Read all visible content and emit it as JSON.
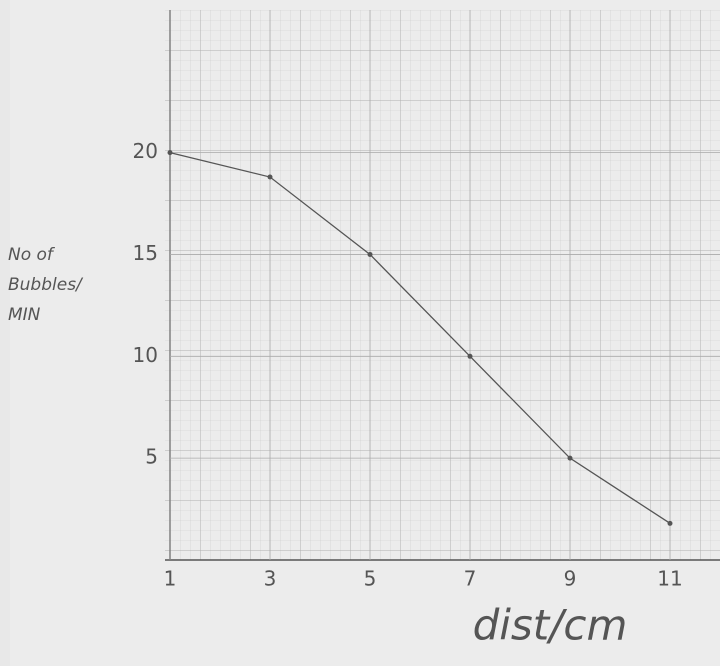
{
  "chart_data": {
    "type": "line",
    "x_label": "dist/cm",
    "y_label": "No of Bubbles/ MIN",
    "x": [
      1,
      3,
      5,
      7,
      9,
      11
    ],
    "series": [
      {
        "color": "#555555",
        "values": [
          20,
          18.8,
          15,
          10,
          5,
          1.8
        ]
      }
    ],
    "xlim": [
      1,
      12
    ],
    "ylim": [
      0,
      27
    ],
    "xticks": [
      1,
      3,
      5,
      7,
      9,
      11
    ],
    "yticks": [
      5,
      10,
      15,
      20
    ],
    "grid": true
  }
}
